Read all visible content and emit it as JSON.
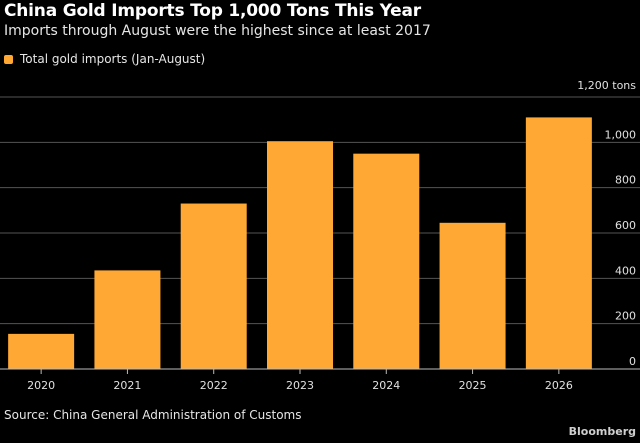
{
  "header": {
    "title": "China Gold Imports Top 1,000 Tons This Year",
    "subtitle": "Imports through August were the highest since at least 2017"
  },
  "legend": {
    "label": "Total gold imports (Jan-August)"
  },
  "footer": {
    "source": "Source: China General Administration of Customs",
    "brand": "Bloomberg"
  },
  "colors": {
    "bar": "#FFA833",
    "grid": "#555555",
    "background": "#000000"
  },
  "chart_data": {
    "type": "bar",
    "title": "China Gold Imports Top 1,000 Tons This Year",
    "subtitle": "Imports through August were the highest since at least 2017",
    "categories": [
      "2020",
      "2021",
      "2022",
      "2023",
      "2024",
      "2025",
      "2026"
    ],
    "series": [
      {
        "name": "Total gold imports (Jan-August)",
        "values": [
          155,
          435,
          730,
          1005,
          950,
          645,
          1110
        ]
      }
    ],
    "ylim": [
      0,
      1200
    ],
    "yticks": [
      0,
      200,
      400,
      600,
      800,
      1000,
      1200
    ],
    "ytick_labels": [
      "0",
      "200",
      "400",
      "600",
      "800",
      "1,000",
      "1,200 tons"
    ],
    "y_axis_side": "right",
    "grid": true,
    "legend_position": "top-left"
  }
}
